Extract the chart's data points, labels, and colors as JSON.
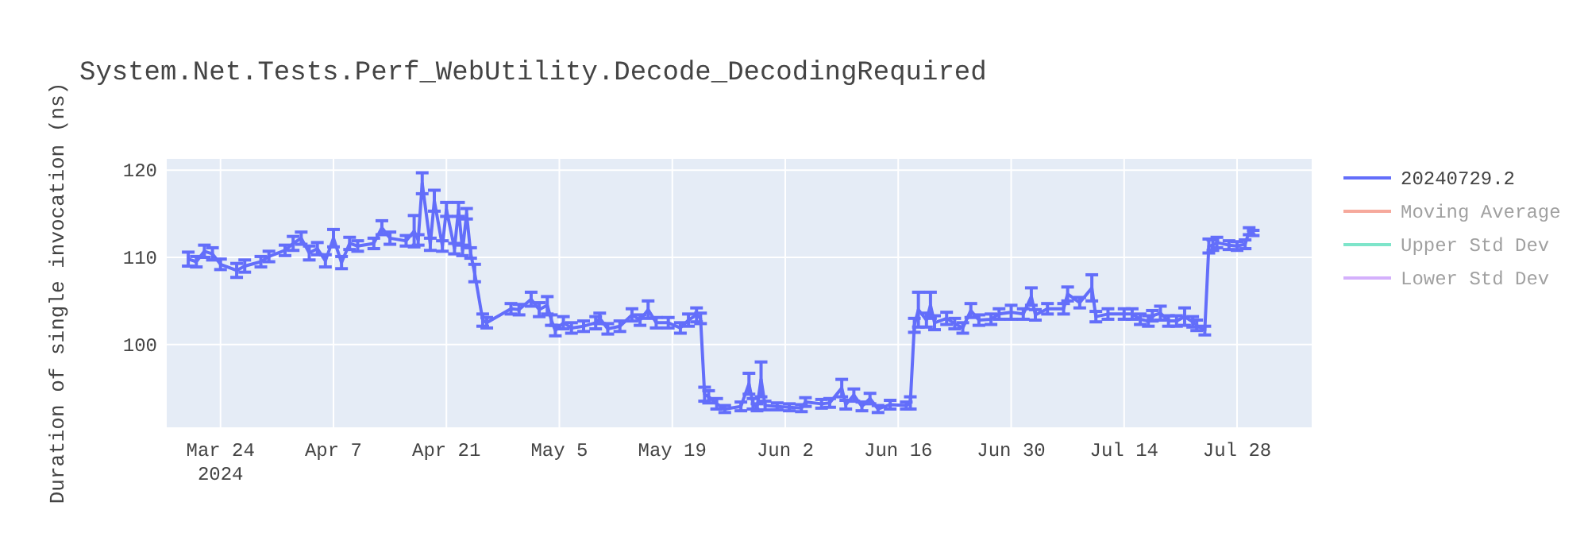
{
  "chart_data": {
    "type": "line",
    "title": "System.Net.Tests.Perf_WebUtility.Decode_DecodingRequired",
    "ylabel": "Duration of single invocation (ns)",
    "xlim": [
      "2024-03-17T08:00",
      "2024-08-06T06:00"
    ],
    "xticks": [
      {
        "value": "2024-03-24",
        "label": "Mar 24\n2024"
      },
      {
        "value": "2024-04-07",
        "label": "Apr 7"
      },
      {
        "value": "2024-04-21",
        "label": "Apr 21"
      },
      {
        "value": "2024-05-05",
        "label": "May 5"
      },
      {
        "value": "2024-05-19",
        "label": "May 19"
      },
      {
        "value": "2024-06-02",
        "label": "Jun 2"
      },
      {
        "value": "2024-06-16",
        "label": "Jun 16"
      },
      {
        "value": "2024-06-30",
        "label": "Jun 30"
      },
      {
        "value": "2024-07-14",
        "label": "Jul 14"
      },
      {
        "value": "2024-07-28",
        "label": "Jul 28"
      }
    ],
    "ylim": [
      90.5,
      121.3
    ],
    "yticks": [
      100,
      110,
      120
    ],
    "grid": true,
    "legend": "right",
    "marker": "none",
    "line_style": "solid",
    "series": [
      {
        "name": "20240729.2",
        "color": "#636efa",
        "x": [
          "2024-03-20",
          "2024-03-21",
          "2024-03-22",
          "2024-03-23",
          "2024-03-24",
          "2024-03-26",
          "2024-03-27",
          "2024-03-29",
          "2024-03-30",
          "2024-04-01",
          "2024-04-02",
          "2024-04-03",
          "2024-04-04",
          "2024-04-05",
          "2024-04-06",
          "2024-04-07",
          "2024-04-08",
          "2024-04-09",
          "2024-04-10",
          "2024-04-12",
          "2024-04-13",
          "2024-04-14",
          "2024-04-16",
          "2024-04-17",
          "2024-04-17T12:00",
          "2024-04-18",
          "2024-04-19",
          "2024-04-19T12:00",
          "2024-04-20T12:00",
          "2024-04-21",
          "2024-04-22",
          "2024-04-22T12:00",
          "2024-04-23",
          "2024-04-23T12:00",
          "2024-04-24",
          "2024-04-24T12:00",
          "2024-04-25T12:00",
          "2024-04-26",
          "2024-04-29",
          "2024-04-30",
          "2024-05-01T12:00",
          "2024-05-02T12:00",
          "2024-05-03T12:00",
          "2024-05-04",
          "2024-05-04T12:00",
          "2024-05-05T12:00",
          "2024-05-06T12:00",
          "2024-05-08",
          "2024-05-09T12:00",
          "2024-05-10",
          "2024-05-11",
          "2024-05-12T12:00",
          "2024-05-14",
          "2024-05-15",
          "2024-05-16",
          "2024-05-17",
          "2024-05-18T12:00",
          "2024-05-20",
          "2024-05-21",
          "2024-05-22",
          "2024-05-22T12:00",
          "2024-05-23",
          "2024-05-23T12:00",
          "2024-05-24T12:00",
          "2024-05-25T12:00",
          "2024-05-27T12:00",
          "2024-05-28T12:00",
          "2024-05-29",
          "2024-05-29T12:00",
          "2024-05-30",
          "2024-05-30T12:00",
          "2024-06-01",
          "2024-06-02T12:00",
          "2024-06-04",
          "2024-06-04T12:00",
          "2024-06-06T12:00",
          "2024-06-07T12:00",
          "2024-06-09",
          "2024-06-09T12:00",
          "2024-06-10T12:00",
          "2024-06-11T12:00",
          "2024-06-12T12:00",
          "2024-06-13T12:00",
          "2024-06-15",
          "2024-06-17",
          "2024-06-17T12:00",
          "2024-06-18",
          "2024-06-18T12:00",
          "2024-06-19T12:00",
          "2024-06-20",
          "2024-06-20T12:00",
          "2024-06-22",
          "2024-06-23",
          "2024-06-24",
          "2024-06-25",
          "2024-06-26",
          "2024-06-27T12:00",
          "2024-06-28T12:00",
          "2024-06-30",
          "2024-07-01T12:00",
          "2024-07-02T12:00",
          "2024-07-03",
          "2024-07-04T12:00",
          "2024-07-06T12:00",
          "2024-07-07",
          "2024-07-08T12:00",
          "2024-07-10",
          "2024-07-10T12:00",
          "2024-07-12",
          "2024-07-14",
          "2024-07-15",
          "2024-07-16",
          "2024-07-17",
          "2024-07-17T12:00",
          "2024-07-18T12:00",
          "2024-07-19T12:00",
          "2024-07-20T12:00",
          "2024-07-21T12:00",
          "2024-07-22T12:00",
          "2024-07-23",
          "2024-07-24",
          "2024-07-24T12:00",
          "2024-07-25",
          "2024-07-25T12:00",
          "2024-07-27",
          "2024-07-28",
          "2024-07-29",
          "2024-07-29T12:00",
          "2024-07-30"
        ],
        "values": [
          109.8,
          109.5,
          110.7,
          110.4,
          109.2,
          108.5,
          109.0,
          109.5,
          110.1,
          110.8,
          111.6,
          112.2,
          110.5,
          111.0,
          109.6,
          112.2,
          109.4,
          111.6,
          111.3,
          111.6,
          113.4,
          112.2,
          111.9,
          113.0,
          112.0,
          118.5,
          111.5,
          116.5,
          111.3,
          115.5,
          111.0,
          115.5,
          110.8,
          115.0,
          110.5,
          108.2,
          102.8,
          102.5,
          104.1,
          104.0,
          105.2,
          104.0,
          104.5,
          102.8,
          101.6,
          102.5,
          101.9,
          102.1,
          102.5,
          103.0,
          101.8,
          102.1,
          103.4,
          102.8,
          104.0,
          102.5,
          102.5,
          101.9,
          102.8,
          103.4,
          103.0,
          94.3,
          94.0,
          93.2,
          92.6,
          92.9,
          95.5,
          93.2,
          92.8,
          96.0,
          93.0,
          92.9,
          92.8,
          92.7,
          93.4,
          93.2,
          93.3,
          95.0,
          93.1,
          94.2,
          92.9,
          93.8,
          92.6,
          93.1,
          93.0,
          93.3,
          102.2,
          104.0,
          102.8,
          104.5,
          102.5,
          103.0,
          102.4,
          101.9,
          103.9,
          102.8,
          102.9,
          103.5,
          103.7,
          103.5,
          105.5,
          103.4,
          104.1,
          104.1,
          105.8,
          104.8,
          106.5,
          103.2,
          103.5,
          103.5,
          103.5,
          102.9,
          102.7,
          103.3,
          103.6,
          102.7,
          102.7,
          103.2,
          102.6,
          102.2,
          101.6,
          111.3,
          111.4,
          111.7,
          111.4,
          111.3,
          111.5,
          113.0,
          112.8
        ],
        "errors": [
          0.8,
          0.6,
          0.7,
          0.7,
          0.6,
          0.8,
          0.7,
          0.6,
          0.6,
          0.6,
          0.8,
          0.7,
          0.8,
          0.7,
          0.7,
          1.0,
          0.7,
          0.7,
          0.6,
          0.6,
          0.8,
          0.7,
          0.6,
          1.8,
          0.6,
          1.2,
          0.7,
          1.2,
          0.6,
          0.8,
          0.6,
          0.8,
          0.6,
          0.6,
          0.6,
          1.0,
          0.7,
          0.6,
          0.6,
          0.6,
          0.8,
          0.8,
          1.0,
          0.6,
          0.6,
          0.7,
          0.6,
          0.6,
          0.7,
          0.6,
          0.6,
          0.6,
          0.7,
          0.6,
          1.0,
          0.6,
          0.6,
          0.6,
          0.7,
          0.8,
          0.6,
          0.8,
          0.7,
          0.6,
          0.4,
          0.5,
          1.2,
          0.6,
          0.4,
          2.0,
          0.5,
          0.4,
          0.4,
          0.4,
          0.5,
          0.5,
          0.5,
          1.0,
          0.5,
          0.7,
          0.5,
          0.6,
          0.4,
          0.5,
          0.4,
          0.7,
          0.8,
          2.0,
          0.8,
          1.5,
          0.8,
          0.7,
          0.6,
          0.6,
          0.8,
          0.6,
          0.6,
          0.6,
          0.8,
          0.6,
          1.0,
          0.6,
          0.6,
          0.6,
          0.8,
          0.6,
          1.5,
          0.6,
          0.6,
          0.6,
          0.6,
          0.6,
          0.6,
          0.6,
          0.8,
          0.6,
          0.6,
          1.0,
          0.6,
          0.6,
          0.5,
          0.8,
          0.6,
          0.6,
          0.5,
          0.5,
          0.5,
          0.4,
          0.3
        ]
      },
      {
        "name": "Moving Average",
        "color": "#ef553b"
      },
      {
        "name": "Upper Std Dev",
        "color": "#00cc96"
      },
      {
        "name": "Lower Std Dev",
        "color": "#ab63fa"
      }
    ]
  }
}
